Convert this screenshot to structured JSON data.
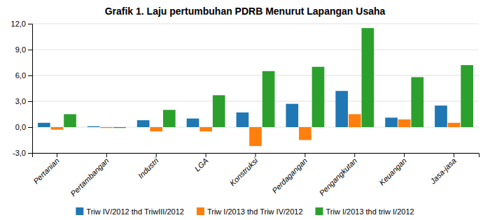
{
  "chart_data": {
    "type": "bar",
    "title": "Grafik 1. Laju pertumbuhan PDRB Menurut Lapangan Usaha",
    "categories": [
      "Pertanian",
      "Pertambangan",
      "Industri",
      "LGA",
      "Konstruksi",
      "Perdagangan",
      "Pengangkutan",
      "Keuangan",
      "Jasa-jasa"
    ],
    "series": [
      {
        "name": "Triw IV/2012 thd TriwIII/2012",
        "values": [
          0.5,
          0.1,
          0.8,
          1.0,
          1.7,
          2.7,
          4.2,
          1.1,
          2.5
        ]
      },
      {
        "name": "Triw I/2013 thd Triw IV/2012",
        "values": [
          -0.3,
          -0.1,
          -0.5,
          -0.5,
          -2.2,
          -1.5,
          1.5,
          0.9,
          0.5
        ]
      },
      {
        "name": "Triw I/2013 thd triw I/2012",
        "values": [
          1.5,
          -0.1,
          2.0,
          3.7,
          6.5,
          7.0,
          11.5,
          5.8,
          7.2
        ]
      }
    ],
    "ylim": [
      -3.0,
      12.0
    ],
    "yticks": [
      {
        "value": -3.0,
        "label": "-3,0"
      },
      {
        "value": 0.0,
        "label": "0,0"
      },
      {
        "value": 3.0,
        "label": "3,0"
      },
      {
        "value": 6.0,
        "label": "6,0"
      },
      {
        "value": 9.0,
        "label": "9,0"
      },
      {
        "value": 12.0,
        "label": "12,0"
      }
    ],
    "grid": true,
    "legend": "bottom"
  }
}
